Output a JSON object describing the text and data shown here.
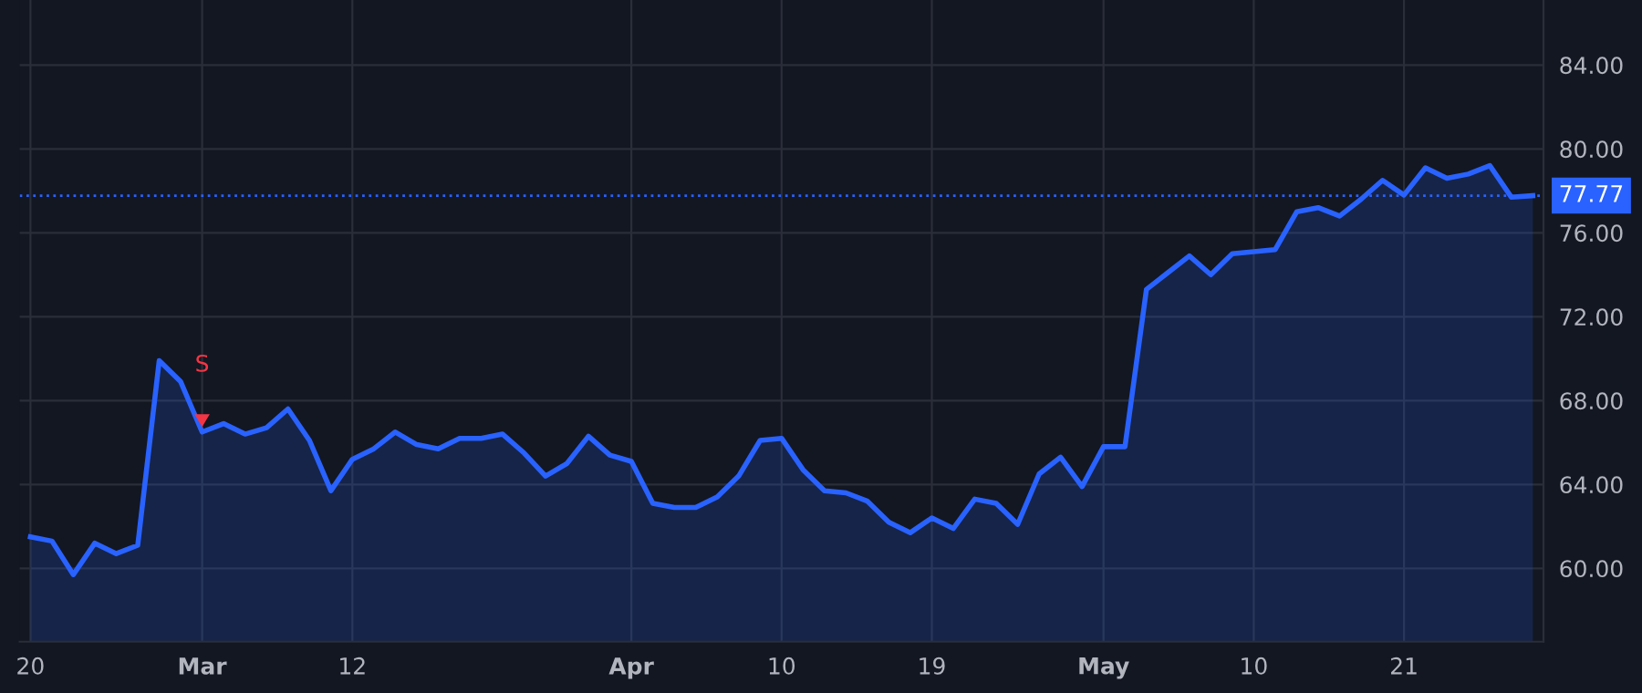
{
  "chart_data": {
    "type": "area",
    "categories": [
      "20",
      null,
      null,
      null,
      null,
      null,
      null,
      null,
      "Mar",
      null,
      null,
      null,
      null,
      null,
      null,
      "12",
      null,
      null,
      null,
      null,
      null,
      null,
      null,
      null,
      null,
      null,
      null,
      null,
      "Apr",
      null,
      null,
      null,
      null,
      null,
      null,
      "10",
      null,
      null,
      null,
      null,
      null,
      null,
      "19",
      null,
      null,
      null,
      null,
      null,
      null,
      null,
      "May",
      null,
      null,
      null,
      null,
      null,
      null,
      "10",
      null,
      null,
      null,
      null,
      null,
      null,
      "21",
      null,
      null,
      null,
      null,
      null,
      null
    ],
    "series": [
      {
        "color": "#2962ff",
        "values": [
          61.5,
          61.3,
          59.7,
          61.2,
          60.7,
          61.1,
          69.9,
          68.9,
          66.5,
          66.9,
          66.4,
          66.7,
          67.6,
          66.1,
          63.7,
          65.2,
          65.7,
          66.5,
          65.9,
          65.7,
          66.2,
          66.2,
          66.4,
          65.5,
          64.4,
          65.0,
          66.3,
          65.4,
          65.1,
          63.1,
          62.9,
          62.9,
          63.4,
          64.4,
          66.1,
          66.2,
          64.7,
          63.7,
          63.6,
          63.2,
          62.2,
          61.7,
          62.4,
          61.9,
          63.3,
          63.1,
          62.1,
          64.5,
          65.3,
          63.9,
          65.8,
          65.8,
          73.3,
          74.1,
          74.9,
          74.0,
          75.0,
          75.1,
          75.2,
          77.0,
          77.2,
          76.8,
          77.6,
          78.5,
          77.8,
          79.1,
          78.6,
          78.8,
          79.2,
          77.7,
          77.77
        ]
      }
    ],
    "ylim": [
      56.5,
      87.1
    ],
    "yticks": [
      {
        "value": 60,
        "label": "60.00"
      },
      {
        "value": 64,
        "label": "64.00"
      },
      {
        "value": 68,
        "label": "68.00"
      },
      {
        "value": 72,
        "label": "72.00"
      },
      {
        "value": 76,
        "label": "76.00"
      },
      {
        "value": 80,
        "label": "80.00"
      },
      {
        "value": 84,
        "label": "84.00"
      }
    ],
    "ref_lines": [
      {
        "axis": "y",
        "value": 77.77,
        "label": "77.77",
        "color": "#2962ff",
        "line_style": "dotted"
      }
    ],
    "annotations": [
      {
        "text": "S",
        "x": "Mar",
        "y": 66.5
      }
    ],
    "grid": true
  }
}
